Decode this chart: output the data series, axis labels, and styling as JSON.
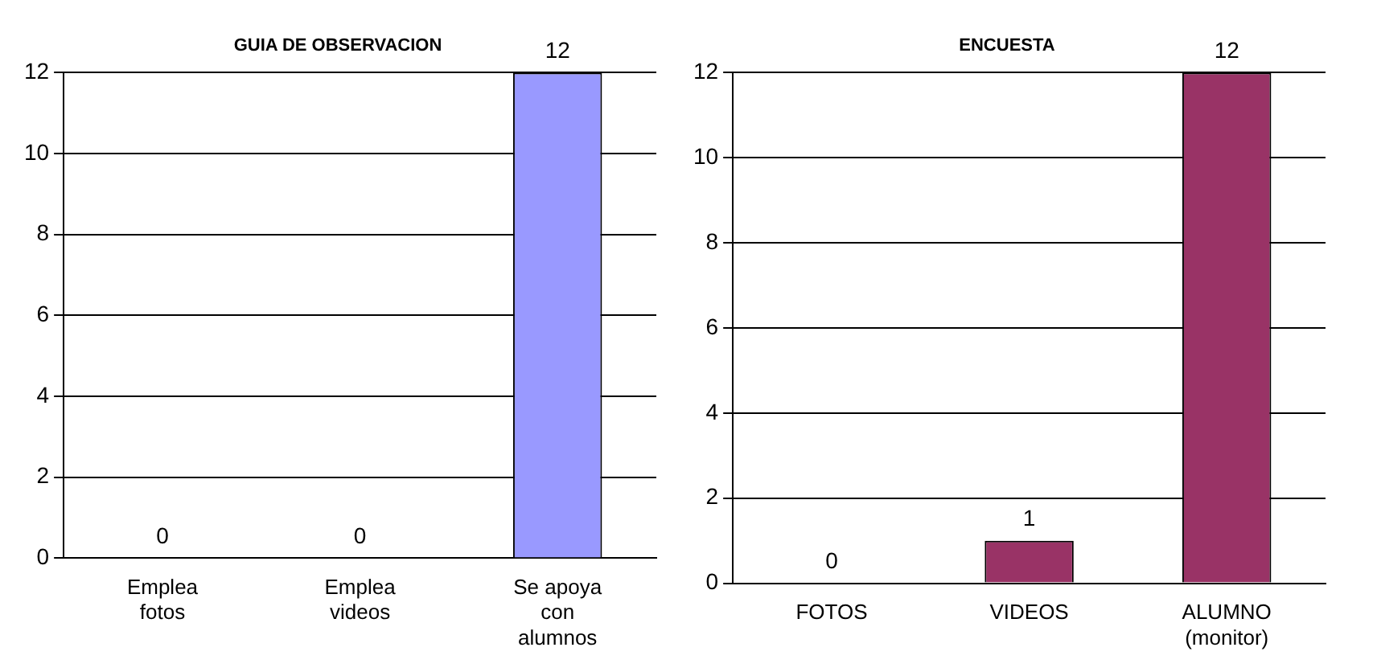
{
  "chart_data": [
    {
      "type": "bar",
      "title": "GUIA DE OBSERVACION",
      "categories": [
        "Emplea\nfotos",
        "Emplea\nvideos",
        "Se apoya\ncon\nalumnos"
      ],
      "values": [
        0,
        0,
        12
      ],
      "color": "#9999ff",
      "ylim": [
        0,
        12
      ],
      "yticks": [
        0,
        2,
        4,
        6,
        8,
        10,
        12
      ],
      "grid": "y",
      "data_labels": true
    },
    {
      "type": "bar",
      "title": "ENCUESTA",
      "categories": [
        "FOTOS",
        "VIDEOS",
        "ALUMNO\n(monitor)"
      ],
      "values": [
        0,
        1,
        12
      ],
      "color": "#993366",
      "ylim": [
        0,
        12
      ],
      "yticks": [
        0,
        2,
        4,
        6,
        8,
        10,
        12
      ],
      "grid": "y",
      "data_labels": true
    }
  ]
}
